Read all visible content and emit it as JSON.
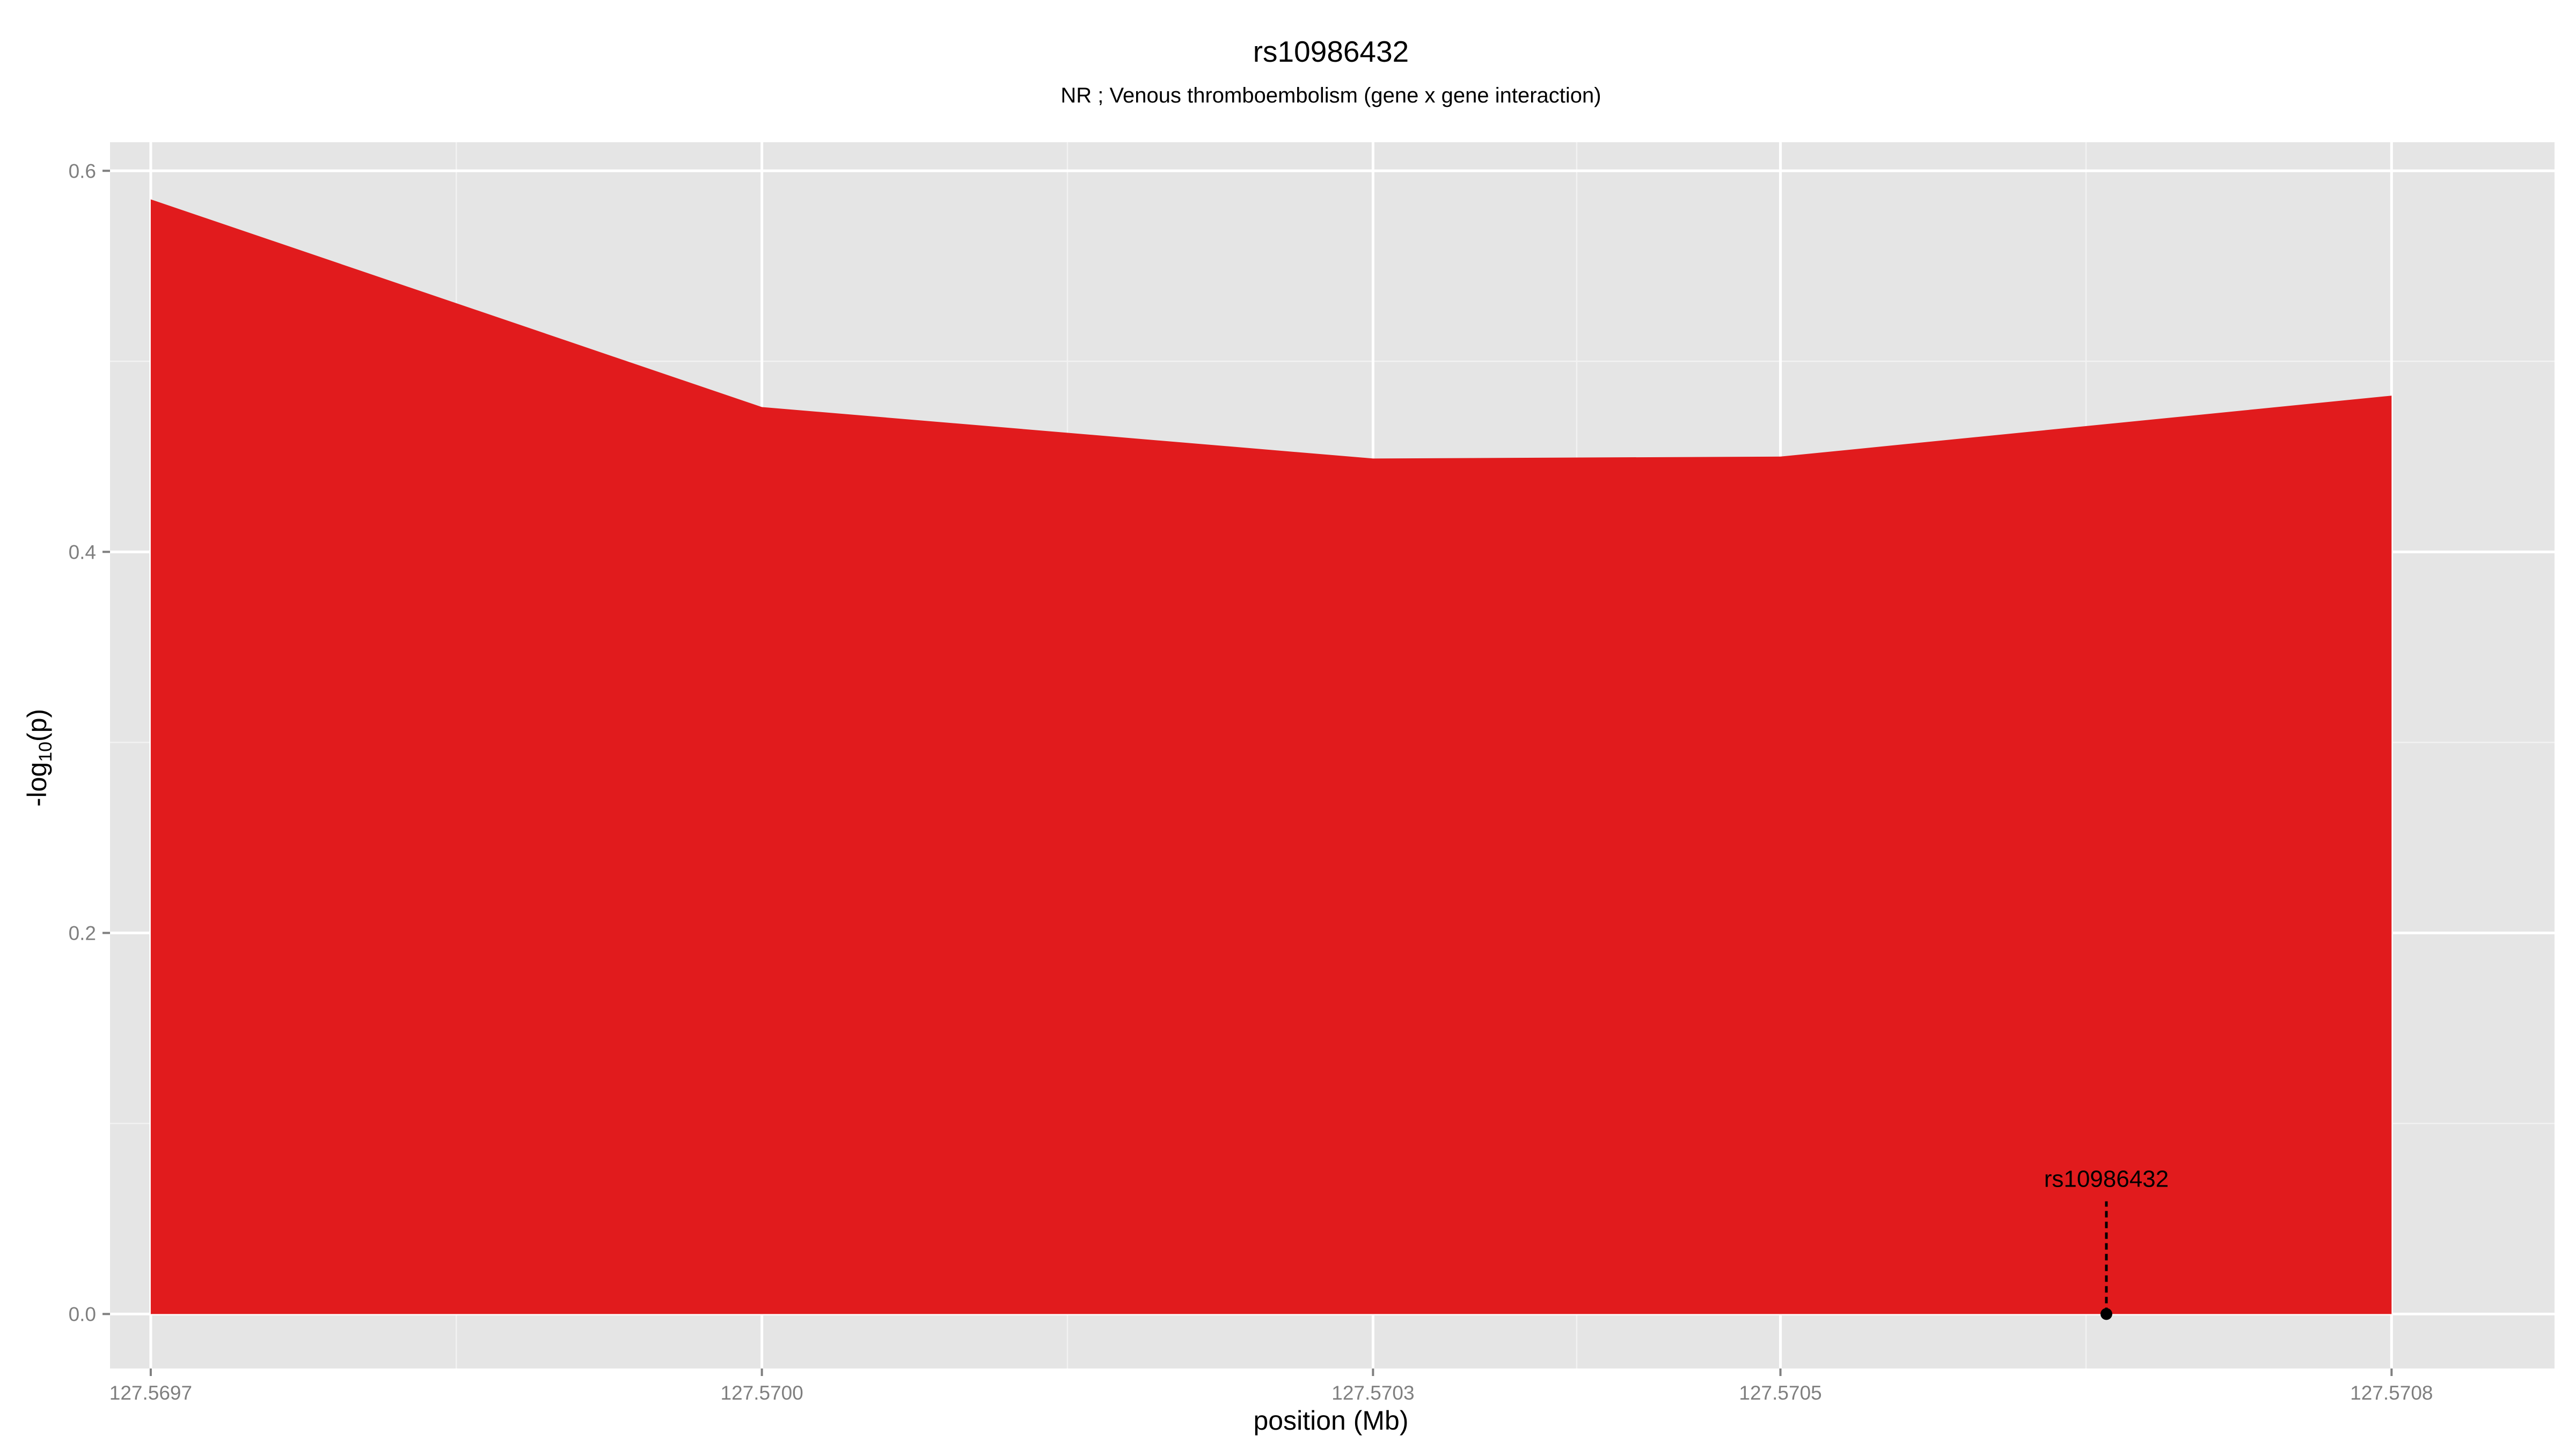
{
  "chart_data": {
    "type": "area",
    "title": "rs10986432",
    "subtitle": "NR ; Venous thromboembolism (gene x gene interaction)",
    "xlabel": "position (Mb)",
    "ylabel_main": "-log",
    "ylabel_sub": "10",
    "ylabel_tail": "(p)",
    "xlim": [
      127.56968,
      127.57088
    ],
    "ylim": [
      -0.0286,
      0.615
    ],
    "x_ticks": [
      {
        "value": 127.5697,
        "label": "127.5697"
      },
      {
        "value": 127.57,
        "label": "127.5700"
      },
      {
        "value": 127.5703,
        "label": "127.5703"
      },
      {
        "value": 127.5705,
        "label": "127.5705"
      },
      {
        "value": 127.5708,
        "label": "127.5708"
      }
    ],
    "y_ticks": [
      {
        "value": 0.0,
        "label": "0.0"
      },
      {
        "value": 0.2,
        "label": "0.2"
      },
      {
        "value": 0.4,
        "label": "0.4"
      },
      {
        "value": 0.6,
        "label": "0.6"
      }
    ],
    "grid": true,
    "series": [
      {
        "x": [
          127.5697,
          127.57,
          127.5703,
          127.5705,
          127.5708
        ],
        "y": [
          0.585,
          0.476,
          0.449,
          0.45,
          0.482
        ],
        "color": "#e11b1d"
      }
    ],
    "annotation": {
      "label": "rs10986432",
      "x": 127.57066,
      "y": 0.0
    },
    "colors": {
      "panel": "#e5e5e5",
      "grid_major": "#ffffff",
      "grid_minor": "#f2f2f2",
      "area": "#e11b1d",
      "tick_text": "#7f7f7f",
      "text": "#000000"
    }
  }
}
